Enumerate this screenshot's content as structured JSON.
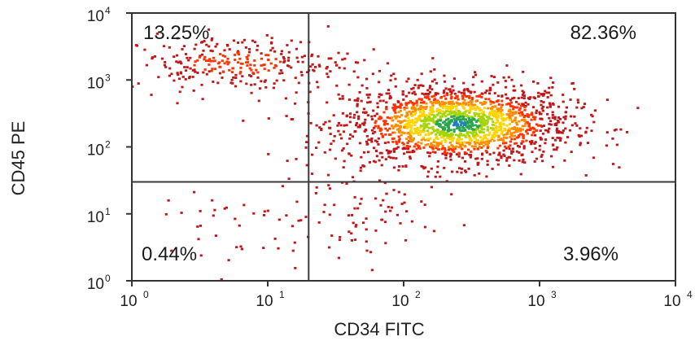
{
  "chart_data": {
    "type": "scatter",
    "style": "flow-cytometry density dot plot",
    "xlabel": "CD34 FITC",
    "ylabel": "CD45 PE",
    "xscale": "log",
    "yscale": "log",
    "xlim": [
      1,
      10000
    ],
    "ylim": [
      1,
      10000
    ],
    "x_ticks": [
      {
        "base": "10",
        "exp": "0",
        "value": 1
      },
      {
        "base": "10",
        "exp": "1",
        "value": 10
      },
      {
        "base": "10",
        "exp": "2",
        "value": 100
      },
      {
        "base": "10",
        "exp": "3",
        "value": 1000
      },
      {
        "base": "10",
        "exp": "4",
        "value": 10000
      }
    ],
    "y_ticks": [
      {
        "base": "10",
        "exp": "0",
        "value": 1
      },
      {
        "base": "10",
        "exp": "1",
        "value": 10
      },
      {
        "base": "10",
        "exp": "2",
        "value": 100
      },
      {
        "base": "10",
        "exp": "3",
        "value": 1000
      },
      {
        "base": "10",
        "exp": "4",
        "value": 10000
      }
    ],
    "gates": {
      "x": 20,
      "y": 30
    },
    "quadrants": [
      {
        "position": "upper-left",
        "label": "13.25%"
      },
      {
        "position": "upper-right",
        "label": "82.36%"
      },
      {
        "position": "lower-left",
        "label": "0.44%"
      },
      {
        "position": "lower-right",
        "label": "3.96%"
      }
    ],
    "populations": [
      {
        "quadrant": "upper-right",
        "center": [
          250,
          220
        ],
        "spread": [
          0.42,
          0.3
        ],
        "fraction": 0.8236,
        "peak_color": "#1f7fbf"
      },
      {
        "quadrant": "upper-left",
        "center": [
          6,
          1800
        ],
        "spread": [
          0.42,
          0.2
        ],
        "fraction": 0.1325,
        "peak_color": "#ff3300"
      },
      {
        "quadrant": "lower-right",
        "center": [
          40,
          10
        ],
        "spread": [
          0.3,
          0.4
        ],
        "fraction": 0.0396,
        "peak_color": "#cc1a1a"
      },
      {
        "quadrant": "lower-left",
        "center": [
          4,
          6
        ],
        "spread": [
          0.35,
          0.35
        ],
        "fraction": 0.0044,
        "peak_color": "#cc1a1a"
      }
    ],
    "density_colors": [
      "#c0181a",
      "#ff3300",
      "#ff8c00",
      "#ffd400",
      "#a8d40a",
      "#2ca64e",
      "#1f7fbf"
    ]
  }
}
